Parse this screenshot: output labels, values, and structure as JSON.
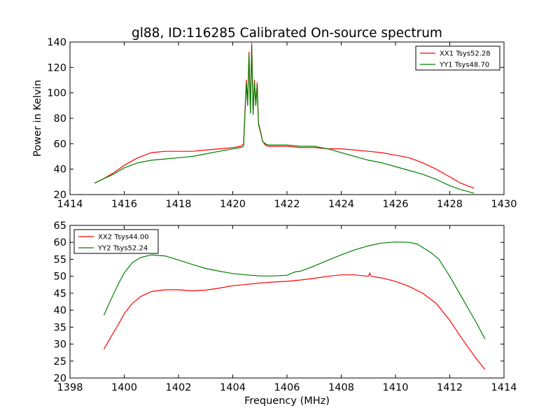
{
  "figure": {
    "title": "gl88, ID:116285 Calibrated On-source spectrum",
    "xlabel": "Frequency (MHz)",
    "ylabel": "Power in Kelvin"
  },
  "colors": {
    "xx": "#ff0000",
    "yy": "#008000",
    "axes": "#000000",
    "background": "#ffffff"
  },
  "chart_data": [
    {
      "type": "line",
      "title": "gl88, ID:116285 Calibrated On-source spectrum",
      "xlabel": "",
      "ylabel": "Power in Kelvin",
      "xlim": [
        1414,
        1430
      ],
      "ylim": [
        20,
        140
      ],
      "xticks": [
        1414,
        1416,
        1418,
        1420,
        1422,
        1424,
        1426,
        1428,
        1430
      ],
      "yticks": [
        20,
        40,
        60,
        80,
        100,
        120,
        140
      ],
      "grid": false,
      "legend_position": "top-right",
      "series": [
        {
          "name": "XX1 Tsys52.28",
          "color": "#ff0000",
          "x": [
            1414.9,
            1415.2,
            1415.6,
            1416.0,
            1416.5,
            1417.0,
            1417.5,
            1418.0,
            1418.5,
            1419.0,
            1419.5,
            1420.0,
            1420.3,
            1420.4,
            1420.5,
            1420.55,
            1420.6,
            1420.65,
            1420.7,
            1420.75,
            1420.8,
            1420.85,
            1420.9,
            1420.95,
            1421.0,
            1421.1,
            1421.2,
            1421.3,
            1421.6,
            1422.0,
            1422.5,
            1423.0,
            1423.5,
            1424.0,
            1424.5,
            1425.0,
            1425.5,
            1426.0,
            1426.5,
            1427.0,
            1427.5,
            1428.0,
            1428.4,
            1428.9
          ],
          "values": [
            29,
            32,
            37,
            43,
            49,
            53,
            54,
            54,
            54,
            55,
            56,
            57,
            58,
            60,
            110,
            92,
            132,
            86,
            139,
            84,
            110,
            92,
            108,
            76,
            72,
            62,
            59,
            58,
            58,
            58,
            57,
            57,
            56,
            56,
            55,
            54,
            53,
            51,
            49,
            45,
            40,
            34,
            29,
            25
          ]
        },
        {
          "name": "YY1 Tsys48.70",
          "color": "#008000",
          "x": [
            1414.9,
            1415.2,
            1415.6,
            1416.0,
            1416.5,
            1417.0,
            1417.5,
            1418.0,
            1418.5,
            1419.0,
            1419.5,
            1420.0,
            1420.3,
            1420.4,
            1420.5,
            1420.55,
            1420.6,
            1420.65,
            1420.7,
            1420.75,
            1420.8,
            1420.85,
            1420.9,
            1420.95,
            1421.0,
            1421.1,
            1421.2,
            1421.3,
            1421.6,
            1422.0,
            1422.5,
            1423.0,
            1423.5,
            1424.0,
            1424.5,
            1425.0,
            1425.5,
            1426.0,
            1426.5,
            1427.0,
            1427.5,
            1428.0,
            1428.4,
            1428.9
          ],
          "values": [
            29,
            32,
            36,
            41,
            45,
            47,
            48,
            49,
            50,
            52,
            54,
            56,
            57,
            58,
            108,
            90,
            130,
            84,
            137,
            83,
            108,
            90,
            106,
            75,
            71,
            62,
            60,
            59,
            59,
            59,
            58,
            58,
            56,
            53,
            50,
            47,
            45,
            42,
            39,
            36,
            32,
            27,
            24,
            21
          ]
        }
      ]
    },
    {
      "type": "line",
      "title": "",
      "xlabel": "Frequency (MHz)",
      "ylabel": "",
      "xlim": [
        1398,
        1414
      ],
      "ylim": [
        20,
        65
      ],
      "xticks": [
        1398,
        1400,
        1402,
        1404,
        1406,
        1408,
        1410,
        1412,
        1414
      ],
      "yticks": [
        20,
        25,
        30,
        35,
        40,
        45,
        50,
        55,
        60,
        65
      ],
      "grid": false,
      "legend_position": "top-left",
      "series": [
        {
          "name": "XX2 Tsys44.00",
          "color": "#ff0000",
          "x": [
            1399.25,
            1399.5,
            1399.8,
            1400.0,
            1400.3,
            1400.6,
            1401.0,
            1401.5,
            1402.0,
            1402.5,
            1403.0,
            1403.5,
            1404.0,
            1404.5,
            1405.0,
            1405.5,
            1406.0,
            1406.5,
            1407.0,
            1407.5,
            1408.0,
            1408.5,
            1409.0,
            1409.05,
            1409.1,
            1409.5,
            1410.0,
            1410.5,
            1411.0,
            1411.5,
            1412.0,
            1412.5,
            1413.0,
            1413.3
          ],
          "values": [
            28.5,
            32,
            36,
            39,
            42,
            44,
            45.5,
            46,
            46,
            45.7,
            45.9,
            46.5,
            47.2,
            47.6,
            48,
            48.3,
            48.5,
            48.9,
            49.4,
            50,
            50.4,
            50.4,
            50,
            51,
            50,
            49.5,
            48.5,
            47,
            45,
            42,
            37,
            31,
            25.5,
            22.5
          ]
        },
        {
          "name": "YY2 Tsys52.24",
          "color": "#008000",
          "x": [
            1399.25,
            1399.5,
            1399.8,
            1400.0,
            1400.3,
            1400.6,
            1401.0,
            1401.5,
            1402.0,
            1402.5,
            1403.0,
            1403.5,
            1404.0,
            1404.5,
            1405.0,
            1405.5,
            1406.0,
            1406.3,
            1406.5,
            1407.0,
            1407.5,
            1408.0,
            1408.5,
            1409.0,
            1409.5,
            1410.0,
            1410.5,
            1410.8,
            1411.0,
            1411.3,
            1411.6,
            1412.0,
            1412.5,
            1413.0,
            1413.3
          ],
          "values": [
            38.5,
            43,
            48,
            51,
            54,
            55.5,
            56.3,
            56,
            54.8,
            53.5,
            52.3,
            51.5,
            50.8,
            50.4,
            50.1,
            50.1,
            50.3,
            51.3,
            51.5,
            53,
            54.7,
            56.3,
            57.8,
            59,
            59.8,
            60.1,
            60,
            59.5,
            58.5,
            57,
            55,
            50,
            43,
            36,
            31.5
          ]
        }
      ]
    }
  ]
}
